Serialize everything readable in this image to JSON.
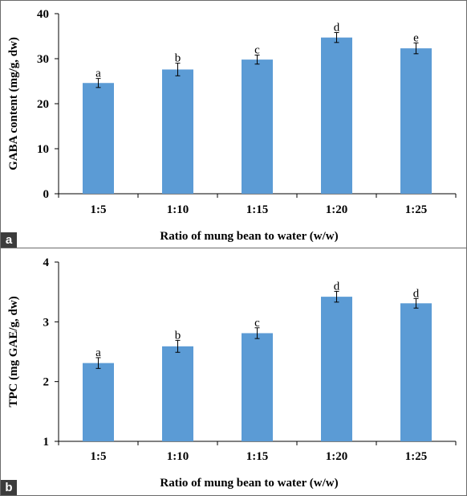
{
  "colors": {
    "bar": "#5b9bd5",
    "axis": "#000000",
    "error_bar": "#000000"
  },
  "chart_data": [
    {
      "panel_label": "a",
      "type": "bar",
      "categories": [
        "1:5",
        "1:10",
        "1:15",
        "1:20",
        "1:25"
      ],
      "values": [
        24.6,
        27.6,
        29.8,
        34.7,
        32.3
      ],
      "error": [
        1.0,
        1.4,
        1.0,
        1.1,
        1.2
      ],
      "letters": [
        "a",
        "b",
        "c",
        "d",
        "e"
      ],
      "xlabel": "Ratio of mung bean to water (w/w)",
      "ylabel": "GABA content (mg/g, dw)",
      "ylim": [
        0,
        40
      ],
      "yticks": [
        0,
        10,
        20,
        30,
        40
      ],
      "grid": false,
      "legend": "none"
    },
    {
      "panel_label": "b",
      "type": "bar",
      "categories": [
        "1:5",
        "1:10",
        "1:15",
        "1:20",
        "1:25"
      ],
      "values": [
        2.31,
        2.59,
        2.81,
        3.42,
        3.31
      ],
      "error": [
        0.09,
        0.1,
        0.09,
        0.09,
        0.08
      ],
      "letters": [
        "a",
        "b",
        "c",
        "d",
        "d"
      ],
      "xlabel": "Ratio of mung bean to water (w/w)",
      "ylabel": "TPC (mg GAE/g, dw)",
      "ylim": [
        1,
        4
      ],
      "yticks": [
        1,
        2,
        3,
        4
      ],
      "grid": false,
      "legend": "none"
    }
  ]
}
